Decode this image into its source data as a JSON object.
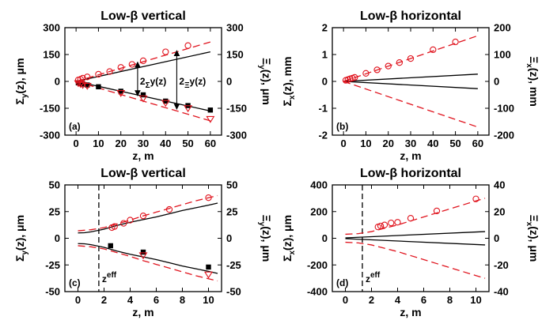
{
  "colors": {
    "data": "#000000",
    "model": "#e0141e"
  },
  "chart_data": [
    {
      "type": "line",
      "panel_tag": "(a)",
      "title": "Low-β vertical",
      "xlabel": "z, m",
      "ylabel_left": "Σy(z), μm",
      "ylabel_right": "Ξy(z), μm",
      "xlim": [
        -5,
        65
      ],
      "ylim": [
        -300,
        300
      ],
      "ylim_right": [
        -300,
        300
      ],
      "xticks": [
        "0",
        "10",
        "20",
        "30",
        "40",
        "50",
        "60"
      ],
      "xtick_values": [
        0,
        10,
        20,
        30,
        40,
        50,
        60
      ],
      "yticks_left": [
        "-300",
        "-150",
        "0",
        "150",
        "300"
      ],
      "ytick_values_left": [
        -300,
        -150,
        0,
        150,
        300
      ],
      "yticks_right": [
        "-300",
        "-150",
        "0",
        "150",
        "300"
      ],
      "ytick_values_right": [
        -300,
        -150,
        0,
        150,
        300
      ],
      "annotations": {
        "label_sigma": "2Σy(z)",
        "label_xi": "2Ξy(z)",
        "arrow_sigma_z": 27.5,
        "arrow_sigma_range": [
          108,
          -80
        ],
        "arrow_xi_z": 45,
        "arrow_xi_range": [
          172,
          -155
        ]
      },
      "series": [
        {
          "name": "Σy model (upper)",
          "style": "solid-black",
          "points": [
            [
              0,
              0
            ],
            [
              60,
              165
            ]
          ]
        },
        {
          "name": "Σy model (lower)",
          "style": "solid-black",
          "points": [
            [
              0,
              0
            ],
            [
              60,
              -165
            ]
          ]
        },
        {
          "name": "Ξy model (upper)",
          "style": "dashed-red",
          "points": [
            [
              0,
              0
            ],
            [
              60,
              220
            ]
          ]
        },
        {
          "name": "Ξy model (lower)",
          "style": "dashed-red",
          "points": [
            [
              0,
              0
            ],
            [
              60,
              -220
            ]
          ]
        },
        {
          "name": "Σy measured",
          "style": "square-black",
          "points": [
            [
              1,
              -8
            ],
            [
              2,
              -12
            ],
            [
              3,
              -15
            ],
            [
              5,
              -20
            ],
            [
              10,
              -30
            ],
            [
              20,
              -55
            ],
            [
              30,
              -75
            ],
            [
              40,
              -110
            ],
            [
              50,
              -135
            ],
            [
              60,
              -160
            ]
          ]
        },
        {
          "name": "Ξy measured (upper)",
          "style": "circle-red",
          "points": [
            [
              1,
              8
            ],
            [
              2,
              12
            ],
            [
              3,
              18
            ],
            [
              5,
              25
            ],
            [
              10,
              40
            ],
            [
              15,
              55
            ],
            [
              20,
              78
            ],
            [
              25,
              95
            ],
            [
              30,
              115
            ],
            [
              40,
              165
            ],
            [
              50,
              200
            ]
          ]
        },
        {
          "name": "Ξy measured (lower)",
          "style": "triangle-red",
          "points": [
            [
              1,
              -10
            ],
            [
              2,
              -15
            ],
            [
              3,
              -20
            ],
            [
              5,
              -25
            ],
            [
              20,
              -65
            ],
            [
              30,
              -95
            ],
            [
              40,
              -120
            ],
            [
              50,
              -150
            ],
            [
              60,
              -210
            ]
          ]
        }
      ]
    },
    {
      "type": "line",
      "panel_tag": "(b)",
      "title": "Low-β horizontal",
      "xlabel": "z, m",
      "ylabel_left": "Σx(z), mm",
      "ylabel_right": "Ξx(z), mm",
      "xlim": [
        -5,
        65
      ],
      "ylim": [
        -2,
        2
      ],
      "ylim_right": [
        -200,
        200
      ],
      "xticks": [
        "0",
        "10",
        "20",
        "30",
        "40",
        "50",
        "60"
      ],
      "xtick_values": [
        0,
        10,
        20,
        30,
        40,
        50,
        60
      ],
      "yticks_left": [
        "-2",
        "-1",
        "0",
        "1",
        "2"
      ],
      "ytick_values_left": [
        -2,
        -1,
        0,
        1,
        2
      ],
      "yticks_right": [
        "-200",
        "-100",
        "0",
        "100",
        "200"
      ],
      "ytick_values_right": [
        -200,
        -100,
        0,
        100,
        200
      ],
      "series": [
        {
          "name": "Σx model (upper)",
          "style": "solid-black",
          "points": [
            [
              0,
              0
            ],
            [
              60,
              0.27
            ]
          ]
        },
        {
          "name": "Σx model (lower)",
          "style": "solid-black",
          "points": [
            [
              0,
              0
            ],
            [
              60,
              -0.27
            ]
          ]
        },
        {
          "name": "Ξx model (upper)",
          "style": "dashed-red",
          "points": [
            [
              0,
              0
            ],
            [
              60,
              1.7
            ]
          ]
        },
        {
          "name": "Ξx model (lower)",
          "style": "dashed-red",
          "points": [
            [
              0,
              0
            ],
            [
              60,
              -1.7
            ]
          ]
        },
        {
          "name": "Ξx measured",
          "style": "circle-red",
          "points": [
            [
              1,
              0.04
            ],
            [
              2,
              0.07
            ],
            [
              3,
              0.1
            ],
            [
              4,
              0.12
            ],
            [
              5,
              0.15
            ],
            [
              10,
              0.3
            ],
            [
              15,
              0.43
            ],
            [
              20,
              0.57
            ],
            [
              25,
              0.7
            ],
            [
              30,
              0.85
            ],
            [
              40,
              1.18
            ],
            [
              50,
              1.47
            ]
          ]
        }
      ]
    },
    {
      "type": "line",
      "panel_tag": "(c)",
      "title": "Low-β vertical",
      "xlabel": "z, m",
      "ylabel_left": "Σy(z), μm",
      "ylabel_right": "Ξy(z), μm",
      "xlim": [
        -1,
        11
      ],
      "ylim": [
        -50,
        50
      ],
      "ylim_right": [
        -50,
        50
      ],
      "xticks": [
        "0",
        "2",
        "4",
        "6",
        "8",
        "10"
      ],
      "xtick_values": [
        0,
        2,
        4,
        6,
        8,
        10
      ],
      "yticks_left": [
        "-50",
        "-25",
        "0",
        "25",
        "50"
      ],
      "ytick_values_left": [
        -50,
        -25,
        0,
        25,
        50
      ],
      "yticks_right": [
        "-50",
        "-25",
        "0",
        "25",
        "50"
      ],
      "ytick_values_right": [
        -50,
        -25,
        0,
        25,
        50
      ],
      "marker": {
        "label": "z",
        "sup": "eff",
        "z": 1.6
      },
      "series": [
        {
          "name": "Σy model (upper)",
          "style": "solid-black",
          "points": [
            [
              0,
              5
            ],
            [
              0.5,
              5.2
            ],
            [
              1,
              6
            ],
            [
              2,
              8.5
            ],
            [
              3,
              12
            ],
            [
              4,
              15
            ],
            [
              5,
              17.5
            ],
            [
              6,
              20
            ],
            [
              7,
              23
            ],
            [
              8,
              26
            ],
            [
              9,
              28.5
            ],
            [
              10,
              31
            ],
            [
              10.7,
              33
            ]
          ]
        },
        {
          "name": "Σy model (lower)",
          "style": "solid-black",
          "points": [
            [
              0,
              -5
            ],
            [
              0.5,
              -5.2
            ],
            [
              1,
              -6
            ],
            [
              2,
              -8.5
            ],
            [
              3,
              -12
            ],
            [
              4,
              -15
            ],
            [
              5,
              -17.5
            ],
            [
              6,
              -20
            ],
            [
              7,
              -23
            ],
            [
              8,
              -26
            ],
            [
              9,
              -28.5
            ],
            [
              10,
              -31
            ],
            [
              10.7,
              -33
            ]
          ]
        },
        {
          "name": "Ξy model (upper)",
          "style": "dashed-red",
          "points": [
            [
              0,
              7
            ],
            [
              1,
              8
            ],
            [
              2,
              10
            ],
            [
              3,
              13.5
            ],
            [
              4,
              17
            ],
            [
              5,
              21
            ],
            [
              6,
              24.5
            ],
            [
              7,
              28
            ],
            [
              8,
              31.5
            ],
            [
              9,
              35
            ],
            [
              10,
              38
            ],
            [
              10.7,
              40
            ]
          ]
        },
        {
          "name": "Ξy model (lower)",
          "style": "dashed-red",
          "points": [
            [
              0,
              -7
            ],
            [
              1,
              -8
            ],
            [
              2,
              -10
            ],
            [
              3,
              -13.5
            ],
            [
              4,
              -17
            ],
            [
              5,
              -21
            ],
            [
              6,
              -24.5
            ],
            [
              7,
              -28
            ],
            [
              8,
              -31.5
            ],
            [
              9,
              -35
            ],
            [
              10,
              -38
            ],
            [
              10.7,
              -40
            ]
          ]
        },
        {
          "name": "Σy measured",
          "style": "square-black",
          "points": [
            [
              2.5,
              -7
            ],
            [
              5,
              -13
            ],
            [
              10,
              -27
            ]
          ]
        },
        {
          "name": "Ξy measured (upper)",
          "style": "circle-red",
          "points": [
            [
              2.6,
              10
            ],
            [
              2.8,
              11
            ],
            [
              3.5,
              14
            ],
            [
              4,
              17
            ],
            [
              5,
              21
            ],
            [
              7,
              27
            ],
            [
              10,
              38
            ]
          ]
        },
        {
          "name": "Ξy measured (lower)",
          "style": "triangle-red",
          "points": [
            [
              5,
              -16
            ],
            [
              10,
              -34
            ]
          ]
        }
      ]
    },
    {
      "type": "line",
      "panel_tag": "(d)",
      "title": "Low-β horizontal",
      "xlabel": "z, m",
      "ylabel_left": "Σx(z), μm",
      "ylabel_right": "Ξx(z), μm",
      "xlim": [
        -1,
        11
      ],
      "ylim": [
        -400,
        400
      ],
      "ylim_right": [
        -40,
        40
      ],
      "xticks": [
        "0",
        "2",
        "4",
        "6",
        "8",
        "10"
      ],
      "xtick_values": [
        0,
        2,
        4,
        6,
        8,
        10
      ],
      "yticks_left": [
        "-400",
        "-200",
        "0",
        "200",
        "400"
      ],
      "ytick_values_left": [
        -400,
        -200,
        0,
        200,
        400
      ],
      "yticks_right": [
        "-40",
        "-20",
        "0",
        "20",
        "40"
      ],
      "ytick_values_right": [
        -40,
        -20,
        0,
        20,
        40
      ],
      "marker": {
        "label": "z",
        "sup": "eff",
        "z": 1.3
      },
      "series": [
        {
          "name": "Σx model (upper)",
          "style": "solid-black",
          "points": [
            [
              0,
              3
            ],
            [
              10.7,
              50
            ]
          ]
        },
        {
          "name": "Σx model (lower)",
          "style": "solid-black",
          "points": [
            [
              0,
              -3
            ],
            [
              10.7,
              -50
            ]
          ]
        },
        {
          "name": "Ξx model (upper)",
          "style": "dashed-red",
          "points": [
            [
              0,
              30
            ],
            [
              1,
              35
            ],
            [
              2,
              50
            ],
            [
              3,
              75
            ],
            [
              4,
              100
            ],
            [
              5,
              130
            ],
            [
              6,
              160
            ],
            [
              7,
              190
            ],
            [
              8,
              220
            ],
            [
              9,
              250
            ],
            [
              10,
              280
            ],
            [
              10.7,
              300
            ]
          ]
        },
        {
          "name": "Ξx model (lower)",
          "style": "dashed-red",
          "points": [
            [
              0,
              -30
            ],
            [
              1,
              -35
            ],
            [
              2,
              -50
            ],
            [
              3,
              -75
            ],
            [
              4,
              -100
            ],
            [
              5,
              -130
            ],
            [
              6,
              -160
            ],
            [
              7,
              -190
            ],
            [
              8,
              -220
            ],
            [
              9,
              -250
            ],
            [
              10,
              -280
            ],
            [
              10.7,
              -300
            ]
          ]
        },
        {
          "name": "Ξx measured",
          "style": "circle-red",
          "points": [
            [
              2.5,
              85
            ],
            [
              2.7,
              92
            ],
            [
              3,
              100
            ],
            [
              3.5,
              115
            ],
            [
              4,
              120
            ],
            [
              5,
              150
            ],
            [
              7,
              205
            ],
            [
              10,
              295
            ]
          ]
        }
      ]
    }
  ]
}
